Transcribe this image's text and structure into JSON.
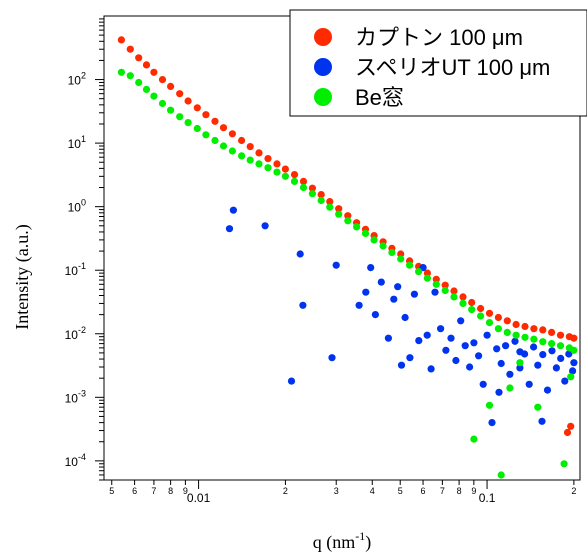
{
  "chart_data": {
    "type": "scatter",
    "title": "",
    "xlabel_base": "q (nm",
    "xlabel_exp": "-1",
    "xlabel_close": ")",
    "ylabel": "Intensity (a.u.)",
    "xscale": "log",
    "yscale": "log",
    "xlim": [
      0.0047,
      0.21
    ],
    "ylim": [
      5e-05,
      1000
    ],
    "grid": false,
    "legend_position": "top-right",
    "x_major_ticks": [
      {
        "value": 0.01,
        "label": "0.01"
      },
      {
        "value": 0.1,
        "label": "0.1"
      }
    ],
    "x_minor_ticks": [
      {
        "value": 0.005,
        "label": "5"
      },
      {
        "value": 0.006,
        "label": "6"
      },
      {
        "value": 0.007,
        "label": "7"
      },
      {
        "value": 0.008,
        "label": "8"
      },
      {
        "value": 0.009,
        "label": "9"
      },
      {
        "value": 0.02,
        "label": "2"
      },
      {
        "value": 0.03,
        "label": "3"
      },
      {
        "value": 0.04,
        "label": "4"
      },
      {
        "value": 0.05,
        "label": "5"
      },
      {
        "value": 0.06,
        "label": "6"
      },
      {
        "value": 0.07,
        "label": "7"
      },
      {
        "value": 0.08,
        "label": "8"
      },
      {
        "value": 0.09,
        "label": "9"
      },
      {
        "value": 0.2,
        "label": "2"
      }
    ],
    "y_ticks": [
      {
        "value": 0.0001,
        "base": "10",
        "exp": "-4"
      },
      {
        "value": 0.001,
        "base": "10",
        "exp": "-3"
      },
      {
        "value": 0.01,
        "base": "10",
        "exp": "-2"
      },
      {
        "value": 0.1,
        "base": "10",
        "exp": "-1"
      },
      {
        "value": 1,
        "base": "10",
        "exp": "0"
      },
      {
        "value": 10,
        "base": "10",
        "exp": "1"
      },
      {
        "value": 100,
        "base": "10",
        "exp": "2"
      }
    ],
    "series": [
      {
        "name": "カプトン 100 μm",
        "color": "#ff2a00",
        "x": [
          0.0054,
          0.0058,
          0.0062,
          0.0066,
          0.007,
          0.0075,
          0.008,
          0.0086,
          0.0092,
          0.0099,
          0.0106,
          0.0114,
          0.0122,
          0.0131,
          0.0141,
          0.0151,
          0.0162,
          0.0174,
          0.0187,
          0.02,
          0.0215,
          0.0231,
          0.0248,
          0.0266,
          0.0285,
          0.0306,
          0.0329,
          0.0353,
          0.0379,
          0.0406,
          0.0436,
          0.0468,
          0.0502,
          0.0539,
          0.0579,
          0.0621,
          0.0667,
          0.0716,
          0.0768,
          0.0825,
          0.0885,
          0.095,
          0.102,
          0.1095,
          0.1175,
          0.1261,
          0.1354,
          0.1453,
          0.156,
          0.1674,
          0.1797,
          0.1929,
          0.2,
          0.195,
          0.19
        ],
        "y": [
          420,
          300,
          220,
          170,
          130,
          100,
          78,
          60,
          46,
          36,
          28,
          22,
          17.5,
          14,
          11,
          8.8,
          7.0,
          5.7,
          4.7,
          3.9,
          3.2,
          2.5,
          1.95,
          1.55,
          1.2,
          0.93,
          0.72,
          0.56,
          0.44,
          0.35,
          0.28,
          0.22,
          0.18,
          0.14,
          0.115,
          0.09,
          0.072,
          0.058,
          0.047,
          0.038,
          0.031,
          0.025,
          0.021,
          0.018,
          0.016,
          0.014,
          0.013,
          0.012,
          0.0115,
          0.0105,
          0.0095,
          0.009,
          0.0085,
          0.00035,
          0.00028
        ]
      },
      {
        "name": "スペリオUT 100 μm",
        "color": "#0033ee",
        "x": [
          0.0128,
          0.0132,
          0.017,
          0.021,
          0.0225,
          0.023,
          0.029,
          0.03,
          0.036,
          0.038,
          0.0395,
          0.041,
          0.043,
          0.0455,
          0.0475,
          0.049,
          0.0505,
          0.052,
          0.054,
          0.056,
          0.058,
          0.06,
          0.062,
          0.064,
          0.066,
          0.069,
          0.072,
          0.075,
          0.078,
          0.081,
          0.084,
          0.087,
          0.09,
          0.0935,
          0.097,
          0.1,
          0.104,
          0.108,
          0.112,
          0.116,
          0.12,
          0.125,
          0.13,
          0.135,
          0.14,
          0.145,
          0.15,
          0.156,
          0.162,
          0.168,
          0.174,
          0.18,
          0.186,
          0.192,
          0.198,
          0.2,
          0.155,
          0.13,
          0.11
        ],
        "y": [
          0.45,
          0.88,
          0.5,
          0.0018,
          0.18,
          0.028,
          0.0042,
          0.12,
          0.028,
          0.045,
          0.11,
          0.02,
          0.065,
          0.0085,
          0.035,
          0.055,
          0.0032,
          0.018,
          0.0042,
          0.042,
          0.0078,
          0.11,
          0.0095,
          0.0028,
          0.045,
          0.012,
          0.0055,
          0.0085,
          0.0038,
          0.016,
          0.0065,
          0.003,
          0.0072,
          0.0045,
          0.0016,
          0.0095,
          0.0004,
          0.0058,
          0.0034,
          0.0065,
          0.0023,
          0.0076,
          0.0029,
          0.0048,
          0.0016,
          0.0062,
          0.0032,
          0.0047,
          0.0013,
          0.0054,
          0.0029,
          0.0041,
          0.0018,
          0.0048,
          0.0026,
          0.0035,
          0.00042,
          0.0052,
          0.0012
        ]
      },
      {
        "name": "Be窓",
        "color": "#00ee00",
        "x": [
          0.0054,
          0.0058,
          0.0062,
          0.0066,
          0.007,
          0.0075,
          0.008,
          0.0086,
          0.0092,
          0.0099,
          0.0106,
          0.0114,
          0.0122,
          0.0131,
          0.0141,
          0.0151,
          0.0162,
          0.0174,
          0.0187,
          0.02,
          0.0215,
          0.0231,
          0.0248,
          0.0266,
          0.0285,
          0.0306,
          0.0329,
          0.0353,
          0.0379,
          0.0406,
          0.0436,
          0.0468,
          0.0502,
          0.0539,
          0.0579,
          0.0621,
          0.0667,
          0.0716,
          0.0768,
          0.0825,
          0.0885,
          0.095,
          0.102,
          0.1095,
          0.1175,
          0.1261,
          0.1354,
          0.1453,
          0.156,
          0.1674,
          0.1797,
          0.1929,
          0.2,
          0.09,
          0.102,
          0.112,
          0.12,
          0.13,
          0.15,
          0.185,
          0.195
        ],
        "y": [
          130,
          115,
          90,
          70,
          55,
          42,
          33,
          26,
          21,
          17,
          13.5,
          11,
          9.0,
          7.5,
          6.3,
          5.4,
          4.7,
          4.1,
          3.5,
          3.0,
          2.5,
          2.0,
          1.6,
          1.25,
          0.98,
          0.76,
          0.6,
          0.48,
          0.38,
          0.3,
          0.24,
          0.19,
          0.15,
          0.12,
          0.095,
          0.075,
          0.06,
          0.048,
          0.038,
          0.03,
          0.024,
          0.019,
          0.015,
          0.012,
          0.0105,
          0.0095,
          0.0088,
          0.0082,
          0.0075,
          0.007,
          0.0065,
          0.006,
          0.0055,
          0.00022,
          0.00075,
          6e-05,
          0.0014,
          0.0035,
          0.0007,
          9e-05,
          0.0021
        ]
      }
    ]
  }
}
